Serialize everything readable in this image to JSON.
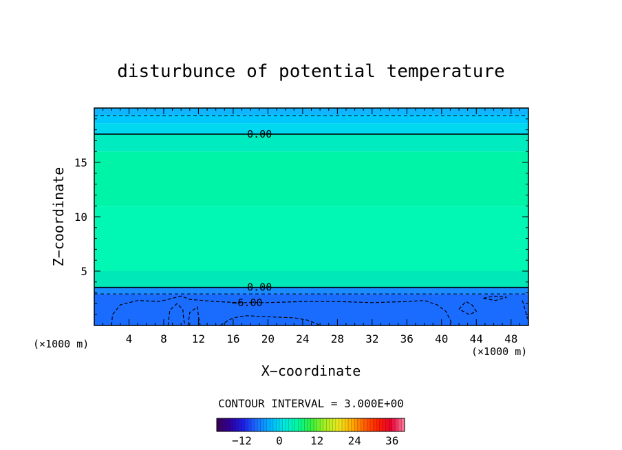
{
  "chart_data": {
    "type": "heatmap",
    "title": "disturbunce of potential temperature",
    "xlabel": "X−coordinate",
    "ylabel": "Z−coordinate",
    "x_unit": "(×1000 m)",
    "z_unit": "(×1000 m)",
    "xlim": [
      0,
      50
    ],
    "ylim": [
      0,
      20
    ],
    "x_ticks": [
      4,
      8,
      12,
      16,
      20,
      24,
      28,
      32,
      36,
      40,
      44,
      48
    ],
    "y_ticks": [
      5,
      10,
      15
    ],
    "grid": false,
    "layers": [
      {
        "z0": 0.0,
        "z1": 2.9,
        "value": -7.5,
        "color": "#1a6cff"
      },
      {
        "z0": 2.9,
        "z1": 3.5,
        "value": -4.5,
        "color": "#1a8cff"
      },
      {
        "z0": 3.5,
        "z1": 5.0,
        "value": 0.8,
        "color": "#00e8b8"
      },
      {
        "z0": 5.0,
        "z1": 11.0,
        "value": 1.2,
        "color": "#00f8b4"
      },
      {
        "z0": 11.0,
        "z1": 16.0,
        "value": 1.6,
        "color": "#00f4a8"
      },
      {
        "z0": 16.0,
        "z1": 17.6,
        "value": 0.8,
        "color": "#00ecc0"
      },
      {
        "z0": 17.6,
        "z1": 18.6,
        "value": -1.5,
        "color": "#00d8f0"
      },
      {
        "z0": 18.6,
        "z1": 19.4,
        "value": -3.0,
        "color": "#00c8ff"
      },
      {
        "z0": 19.4,
        "z1": 20.0,
        "value": -4.5,
        "color": "#10b4ff"
      }
    ],
    "contours": [
      {
        "level": 0.0,
        "z": 17.6,
        "style": "solid",
        "label": "0.00",
        "label_x": 17.6
      },
      {
        "level": 0.0,
        "z": 3.5,
        "style": "solid",
        "label": "0.00",
        "label_x": 17.6
      },
      {
        "level": -3.0,
        "z": 19.3,
        "style": "dashed",
        "label": "",
        "label_x": 0
      },
      {
        "level": -3.0,
        "z": 2.9,
        "style": "dashed",
        "label": "",
        "label_x": 0
      }
    ],
    "contour_minus6": {
      "level": -6.0,
      "label": "−6.00",
      "label_x": 15.8,
      "label_z": 2.1,
      "points": [
        [
          2.0,
          0.0
        ],
        [
          2.1,
          1.0
        ],
        [
          3.0,
          1.9
        ],
        [
          5.0,
          2.3
        ],
        [
          7.5,
          2.2
        ],
        [
          9.0,
          2.5
        ],
        [
          10.0,
          2.7
        ],
        [
          11.0,
          2.4
        ],
        [
          12.5,
          2.3
        ],
        [
          14.0,
          2.2
        ],
        [
          16.5,
          2.1
        ],
        [
          20.0,
          2.1
        ],
        [
          24.0,
          2.2
        ],
        [
          28.0,
          2.2
        ],
        [
          32.0,
          2.1
        ],
        [
          36.0,
          2.2
        ],
        [
          38.0,
          2.3
        ],
        [
          39.5,
          1.9
        ],
        [
          40.5,
          1.3
        ],
        [
          41.0,
          0.5
        ],
        [
          41.2,
          0.0
        ]
      ],
      "pockets": [
        [
          [
            8.5,
            0.0
          ],
          [
            8.7,
            1.4
          ],
          [
            9.5,
            2.0
          ],
          [
            10.2,
            1.5
          ],
          [
            10.3,
            0.5
          ],
          [
            10.5,
            0.0
          ]
        ],
        [
          [
            10.8,
            0.0
          ],
          [
            11.0,
            1.2
          ],
          [
            11.9,
            1.7
          ],
          [
            12.0,
            0.8
          ],
          [
            12.2,
            0.0
          ]
        ],
        [
          [
            14.5,
            0.0
          ],
          [
            15.3,
            0.4
          ],
          [
            16.0,
            0.7
          ],
          [
            17.5,
            0.9
          ],
          [
            20.0,
            0.8
          ],
          [
            23.0,
            0.7
          ],
          [
            24.5,
            0.5
          ],
          [
            25.5,
            0.2
          ],
          [
            26.0,
            0.0
          ]
        ],
        [
          [
            42.0,
            1.5
          ],
          [
            42.8,
            2.2
          ],
          [
            43.5,
            1.9
          ],
          [
            44.0,
            1.3
          ],
          [
            43.2,
            1.0
          ],
          [
            42.0,
            1.5
          ]
        ],
        [
          [
            44.8,
            2.5
          ],
          [
            46.0,
            2.7
          ],
          [
            47.5,
            2.6
          ],
          [
            46.2,
            2.3
          ],
          [
            44.8,
            2.5
          ]
        ],
        [
          [
            49.3,
            2.3
          ],
          [
            49.6,
            1.5
          ],
          [
            49.9,
            0.6
          ]
        ]
      ]
    },
    "contour_interval_text": "CONTOUR INTERVAL = 3.000E+00",
    "colorbar": {
      "min": -20,
      "max": 40,
      "ticks": [
        -12,
        0,
        12,
        24,
        36
      ],
      "colors": [
        "#3a0050",
        "#3000a0",
        "#1c20e8",
        "#1a70ff",
        "#00b4ff",
        "#00e8e0",
        "#00f8a0",
        "#30f040",
        "#a0f020",
        "#e8e820",
        "#ffb000",
        "#ff6000",
        "#ff2000",
        "#e80030",
        "#ff80a0"
      ]
    }
  }
}
